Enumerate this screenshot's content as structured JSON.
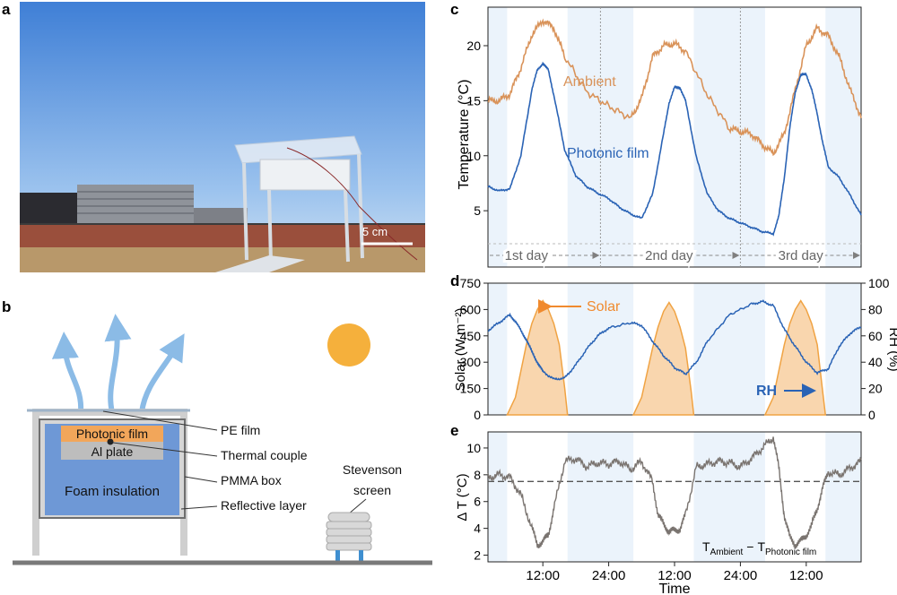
{
  "panel_labels": {
    "a": "a",
    "b": "b",
    "c": "c",
    "d": "d",
    "e": "e"
  },
  "photo": {
    "scale_bar_label": "5 cm",
    "colors": {
      "sky_top": "#3f7fd6",
      "sky_bottom": "#c7dcf1",
      "ground": "#b8986a"
    }
  },
  "schematic": {
    "layer_photonic_film": "Photonic film",
    "layer_al_plate": "Al plate",
    "layer_foam": "Foam insulation",
    "callout_pe_film": "PE film",
    "callout_thermal_couple": "Thermal couple",
    "callout_pmma_box": "PMMA box",
    "callout_reflective_layer": "Reflective layer",
    "stevenson_line1": "Stevenson",
    "stevenson_line2": "screen",
    "colors": {
      "photonic": "#f2a65a",
      "foam": "#6e98d6",
      "arrow": "#8bbbe6",
      "sun": "#f5b03c"
    }
  },
  "chart_data": [
    {
      "panel": "c",
      "type": "line",
      "ylabel": "Temperature (°C)",
      "ylim": [
        2,
        23.5
      ],
      "yticks": [
        5,
        10,
        15,
        20
      ],
      "x_range_hours": [
        0,
        68
      ],
      "day_labels": [
        "1st day",
        "2nd day",
        "3rd day"
      ],
      "series": [
        {
          "name": "Ambient",
          "color": "#d9935a",
          "x": [
            0,
            2,
            4,
            6,
            8,
            10,
            12,
            14,
            18,
            22,
            26,
            28,
            30,
            32,
            34,
            36,
            40,
            44,
            46,
            48,
            50,
            52,
            54,
            56,
            58,
            60,
            62,
            64,
            66,
            68
          ],
          "y": [
            15.0,
            15.0,
            15.6,
            18.0,
            21.0,
            22.3,
            21.6,
            19.0,
            15.8,
            14.5,
            13.4,
            15.2,
            19.0,
            20.0,
            20.2,
            19.5,
            15.5,
            12.5,
            12.2,
            12.0,
            11.0,
            10.2,
            12.0,
            16.0,
            20.0,
            21.6,
            20.9,
            19.0,
            16.0,
            13.5
          ]
        },
        {
          "name": "Photonic film",
          "color": "#2a63b5",
          "x": [
            0,
            2,
            4,
            6,
            8,
            9,
            10,
            11,
            12,
            14,
            16,
            18,
            20,
            22,
            24,
            26,
            28,
            30,
            32,
            33,
            34,
            35,
            36,
            38,
            40,
            42,
            44,
            46,
            48,
            50,
            52,
            53,
            54,
            55,
            56,
            57,
            58,
            59,
            60,
            61,
            62,
            64,
            66,
            68
          ],
          "y": [
            7.2,
            6.8,
            7.0,
            10.0,
            16.0,
            17.8,
            18.4,
            17.8,
            15.5,
            10.5,
            8.2,
            7.2,
            6.6,
            6.1,
            5.3,
            4.7,
            4.3,
            6.5,
            12.0,
            14.8,
            16.2,
            16.2,
            15.0,
            9.8,
            6.5,
            5.0,
            4.3,
            3.9,
            3.5,
            3.1,
            2.9,
            4.5,
            8.0,
            12.5,
            15.8,
            17.3,
            17.4,
            16.0,
            13.8,
            11.2,
            9.0,
            8.0,
            6.4,
            4.6
          ]
        }
      ]
    },
    {
      "panel": "d",
      "type": "area",
      "ylabel_left": "Solar (W m⁻²)",
      "ylabel_right": "RH (%)",
      "ylim_left": [
        0,
        750
      ],
      "ylim_right": [
        0,
        100
      ],
      "yticks_left": [
        0,
        150,
        300,
        450,
        600,
        750
      ],
      "yticks_right": [
        0,
        20,
        40,
        60,
        80,
        100
      ],
      "series": [
        {
          "name": "Solar",
          "axis": "left",
          "color": "#f0a343",
          "x": [
            3.5,
            5,
            6,
            7,
            8,
            9,
            10,
            11,
            12,
            13,
            14,
            14.5,
            26.5,
            28,
            29,
            30,
            31,
            32,
            33,
            34,
            35,
            36,
            37,
            37.5,
            50.5,
            52,
            53,
            54,
            55,
            56,
            57,
            58,
            59,
            60,
            61,
            61.5
          ],
          "y": [
            0,
            100,
            250,
            400,
            520,
            600,
            650,
            600,
            520,
            400,
            150,
            0,
            0,
            100,
            240,
            380,
            500,
            590,
            640,
            590,
            500,
            380,
            140,
            0,
            0,
            100,
            250,
            400,
            520,
            600,
            650,
            600,
            520,
            400,
            130,
            0
          ]
        },
        {
          "name": "RH",
          "axis": "right",
          "color": "#2a63b5",
          "x": [
            0,
            2,
            4,
            5,
            6,
            7,
            8,
            9,
            10,
            12,
            14,
            16,
            18,
            20,
            22,
            26,
            28,
            30,
            32,
            34,
            36,
            38,
            40,
            44,
            48,
            50,
            52,
            54,
            56,
            58,
            60,
            62,
            64,
            66,
            68
          ],
          "y": [
            64,
            70,
            76,
            71,
            64,
            57,
            48,
            40,
            33,
            27,
            28,
            38,
            50,
            60,
            66,
            70,
            68,
            56,
            45,
            36,
            31,
            40,
            56,
            76,
            84,
            86,
            83,
            65,
            52,
            40,
            32,
            35,
            52,
            62,
            67
          ]
        }
      ],
      "labels": {
        "solar": "Solar",
        "rh": "RH"
      }
    },
    {
      "panel": "e",
      "type": "line",
      "ylabel": "Δ T (°C)",
      "xlabel": "Time",
      "ylim": [
        1.5,
        11.2
      ],
      "yticks": [
        2,
        4,
        6,
        8,
        10
      ],
      "xtick_labels": [
        "12:00",
        "24:00",
        "12:00",
        "24:00",
        "12:00"
      ],
      "xtick_hours": [
        10,
        22,
        34,
        46,
        58
      ],
      "reference_line": 7.5,
      "series": [
        {
          "name": "T_Ambient − T_Photonic film",
          "color": "#7a7470",
          "x": [
            0,
            2,
            4,
            6,
            8,
            9,
            10,
            11,
            12,
            14,
            16,
            18,
            20,
            22,
            24,
            26,
            28,
            30,
            31,
            32,
            33,
            34,
            35,
            36,
            38,
            40,
            42,
            44,
            46,
            48,
            50,
            52,
            53,
            54,
            55,
            56,
            57,
            58,
            59,
            60,
            61,
            62,
            64,
            66,
            68
          ],
          "y": [
            7.8,
            8.0,
            7.8,
            6.5,
            4.0,
            2.8,
            3.0,
            3.5,
            5.5,
            9.0,
            9.2,
            8.6,
            8.9,
            8.8,
            9.0,
            8.4,
            9.0,
            7.5,
            5.0,
            4.3,
            3.8,
            3.8,
            4.0,
            5.0,
            8.6,
            8.8,
            9.0,
            8.9,
            8.6,
            9.2,
            10.0,
            10.8,
            8.5,
            5.0,
            3.3,
            2.8,
            3.0,
            3.5,
            4.2,
            5.5,
            7.0,
            8.2,
            8.0,
            8.5,
            9.0
          ]
        }
      ],
      "legend_parts": {
        "T": "T",
        "ambient_sub": "Ambient",
        "minus": "−",
        "photonic_sub": "Photonic film"
      }
    }
  ]
}
